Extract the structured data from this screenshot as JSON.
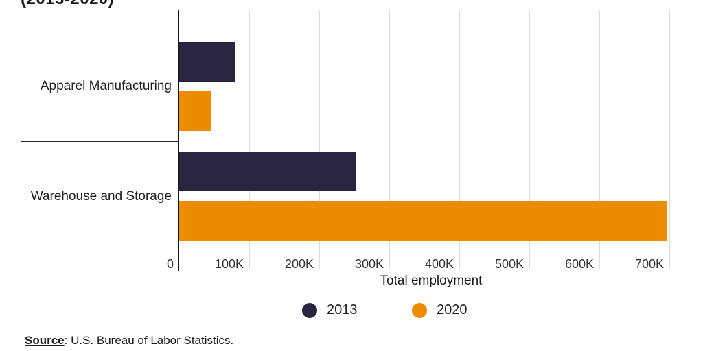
{
  "chart_data": {
    "type": "bar",
    "orientation": "horizontal",
    "title_visible_fragment": "(2013-2020)",
    "categories": [
      "Apparel Manufacturing",
      "Warehouse and Storage"
    ],
    "series": [
      {
        "name": "2013",
        "color": "#29243f",
        "values": [
          80000,
          252000
        ]
      },
      {
        "name": "2020",
        "color": "#ee8c00",
        "values": [
          45000,
          696000
        ]
      }
    ],
    "xlabel": "Total employment",
    "xticks": [
      {
        "value": 0,
        "label": "0"
      },
      {
        "value": 100000,
        "label": "100K"
      },
      {
        "value": 200000,
        "label": "200K"
      },
      {
        "value": 300000,
        "label": "300K"
      },
      {
        "value": 400000,
        "label": "400K"
      },
      {
        "value": 500000,
        "label": "500K"
      },
      {
        "value": 600000,
        "label": "600K"
      },
      {
        "value": 700000,
        "label": "700K"
      },
      {
        "value": 733000,
        "label": ""
      }
    ],
    "xlim": [
      0,
      733000
    ],
    "grid": true,
    "legend_position": "bottom-center"
  },
  "source": {
    "label": "Source",
    "rest": ": U.S. Bureau of Labor Statistics."
  }
}
